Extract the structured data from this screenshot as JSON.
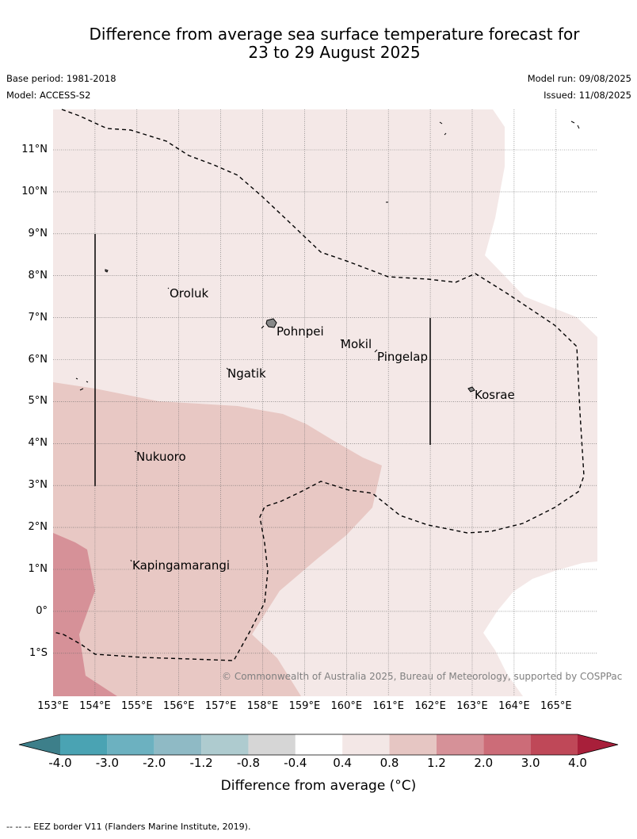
{
  "title_line1": "Difference from average sea surface temperature forecast for",
  "title_line2": "23 to 29 August 2025",
  "base_period": "Base period: 1981-2018",
  "model": "Model: ACCESS-S2",
  "model_run": "Model run: 09/08/2025",
  "issued": "Issued: 11/08/2025",
  "lon_labels": [
    "153°E",
    "154°E",
    "155°E",
    "156°E",
    "157°E",
    "158°E",
    "159°E",
    "160°E",
    "161°E",
    "162°E",
    "163°E",
    "164°E",
    "165°E"
  ],
  "lat_labels": [
    "11°N",
    "10°N",
    "9°N",
    "8°N",
    "7°N",
    "6°N",
    "5°N",
    "4°N",
    "3°N",
    "2°N",
    "1°N",
    "0°",
    "1°S"
  ],
  "places": {
    "oroluk": "Oroluk",
    "pohnpei": "Pohnpei",
    "mokil": "Mokil",
    "pingelap": "Pingelap",
    "ngatik": "Ngatik",
    "kosrae": "Kosrae",
    "nukuoro": "Nukuoro",
    "kapingamarangi": "Kapingamarangi"
  },
  "copyright": "© Commonwealth of Australia 2025, Bureau of Meteorology, supported by COSPPac",
  "colorbar": {
    "ticks": [
      "-4.0",
      "-3.0",
      "-2.0",
      "-1.2",
      "-0.8",
      "-0.4",
      "0.4",
      "0.8",
      "1.2",
      "2.0",
      "3.0",
      "4.0"
    ],
    "colors": [
      "#3d7f8a",
      "#4aa3b3",
      "#6cb1c0",
      "#8fbac5",
      "#aecbcf",
      "#d6d6d6",
      "#ffffff",
      "#f3e7e6",
      "#e6c6c3",
      "#d69198",
      "#cc6c78",
      "#bf4858",
      "#a81f3a"
    ],
    "label": "Difference from average (°C)"
  },
  "footer": "--  --  -- EEZ border V11 (Flanders Marine Institute, 2019).",
  "field": {
    "background_band": "0.4 to 0.8",
    "central_band": "0.8 to 1.2",
    "southwest_band": "1.2 to 2.0",
    "east_band": "-0.4 to 0.4"
  }
}
